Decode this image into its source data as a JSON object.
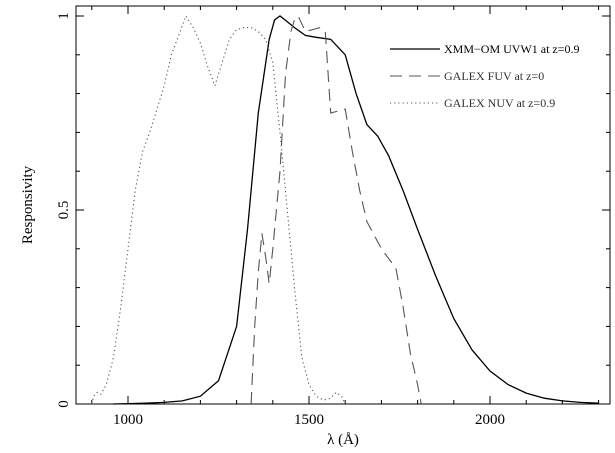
{
  "chart_data": {
    "type": "line",
    "xlabel": "λ (Å)",
    "ylabel": "Responsivity",
    "xlim": [
      850,
      2300
    ],
    "ylim": [
      0,
      1.02
    ],
    "x_ticks": [
      1000,
      1500,
      2000
    ],
    "x_tick_labels": [
      "1000",
      "1500",
      "2000"
    ],
    "y_ticks": [
      0,
      0.5,
      1
    ],
    "y_tick_labels": [
      "0",
      "0.5",
      "1"
    ],
    "grid": false,
    "legend_position": "top-right",
    "series": [
      {
        "name": "XMM−OM UVW1 at z=0.9",
        "style": "solid",
        "color": "#000000",
        "points": [
          [
            960,
            0.0
          ],
          [
            1000,
            0.001
          ],
          [
            1050,
            0.002
          ],
          [
            1100,
            0.004
          ],
          [
            1150,
            0.008
          ],
          [
            1200,
            0.02
          ],
          [
            1250,
            0.06
          ],
          [
            1300,
            0.2
          ],
          [
            1330,
            0.45
          ],
          [
            1360,
            0.75
          ],
          [
            1390,
            0.94
          ],
          [
            1405,
            0.99
          ],
          [
            1420,
            1.0
          ],
          [
            1440,
            0.985
          ],
          [
            1460,
            0.97
          ],
          [
            1490,
            0.95
          ],
          [
            1520,
            0.945
          ],
          [
            1560,
            0.94
          ],
          [
            1600,
            0.9
          ],
          [
            1630,
            0.8
          ],
          [
            1660,
            0.72
          ],
          [
            1690,
            0.69
          ],
          [
            1720,
            0.64
          ],
          [
            1760,
            0.55
          ],
          [
            1800,
            0.45
          ],
          [
            1850,
            0.33
          ],
          [
            1900,
            0.22
          ],
          [
            1950,
            0.14
          ],
          [
            2000,
            0.085
          ],
          [
            2050,
            0.05
          ],
          [
            2100,
            0.028
          ],
          [
            2150,
            0.015
          ],
          [
            2200,
            0.008
          ],
          [
            2250,
            0.004
          ],
          [
            2300,
            0.002
          ]
        ]
      },
      {
        "name": "GALEX FUV at z=0",
        "style": "dashed",
        "color": "#555555",
        "points": [
          [
            1340,
            0.0
          ],
          [
            1350,
            0.2
          ],
          [
            1360,
            0.34
          ],
          [
            1370,
            0.44
          ],
          [
            1380,
            0.38
          ],
          [
            1390,
            0.31
          ],
          [
            1400,
            0.4
          ],
          [
            1410,
            0.5
          ],
          [
            1420,
            0.6
          ],
          [
            1435,
            0.85
          ],
          [
            1450,
            0.96
          ],
          [
            1460,
            0.99
          ],
          [
            1470,
            1.0
          ],
          [
            1480,
            0.98
          ],
          [
            1490,
            0.96
          ],
          [
            1510,
            0.965
          ],
          [
            1530,
            0.97
          ],
          [
            1545,
            0.96
          ],
          [
            1560,
            0.75
          ],
          [
            1600,
            0.76
          ],
          [
            1620,
            0.65
          ],
          [
            1640,
            0.55
          ],
          [
            1660,
            0.47
          ],
          [
            1700,
            0.4
          ],
          [
            1740,
            0.35
          ],
          [
            1760,
            0.25
          ],
          [
            1780,
            0.13
          ],
          [
            1800,
            0.05
          ],
          [
            1810,
            0.0
          ]
        ]
      },
      {
        "name": "GALEX NUV at z=0.9",
        "style": "dotted",
        "color": "#555555",
        "points": [
          [
            900,
            0.0
          ],
          [
            905,
            0.02
          ],
          [
            915,
            0.03
          ],
          [
            925,
            0.025
          ],
          [
            940,
            0.05
          ],
          [
            960,
            0.12
          ],
          [
            980,
            0.25
          ],
          [
            1000,
            0.4
          ],
          [
            1020,
            0.55
          ],
          [
            1040,
            0.65
          ],
          [
            1060,
            0.7
          ],
          [
            1080,
            0.76
          ],
          [
            1100,
            0.82
          ],
          [
            1120,
            0.9
          ],
          [
            1140,
            0.95
          ],
          [
            1160,
            1.0
          ],
          [
            1180,
            0.97
          ],
          [
            1200,
            0.93
          ],
          [
            1220,
            0.87
          ],
          [
            1240,
            0.82
          ],
          [
            1260,
            0.88
          ],
          [
            1280,
            0.94
          ],
          [
            1300,
            0.965
          ],
          [
            1320,
            0.97
          ],
          [
            1340,
            0.97
          ],
          [
            1360,
            0.96
          ],
          [
            1380,
            0.94
          ],
          [
            1400,
            0.88
          ],
          [
            1420,
            0.7
          ],
          [
            1440,
            0.5
          ],
          [
            1460,
            0.3
          ],
          [
            1480,
            0.12
          ],
          [
            1500,
            0.05
          ],
          [
            1520,
            0.02
          ],
          [
            1540,
            0.01
          ],
          [
            1560,
            0.015
          ],
          [
            1575,
            0.03
          ],
          [
            1590,
            0.02
          ],
          [
            1600,
            0.0
          ]
        ]
      }
    ]
  }
}
